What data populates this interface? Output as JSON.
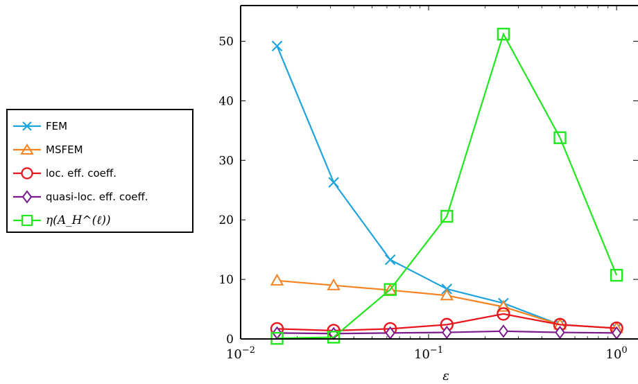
{
  "chart_data": {
    "type": "line",
    "title": "",
    "xlabel": "ε",
    "ylabel": "",
    "xscale": "log",
    "xlim": [
      0.01,
      1.3
    ],
    "ylim": [
      0,
      56
    ],
    "x": [
      0.015625,
      0.03125,
      0.0625,
      0.125,
      0.25,
      0.5,
      1.0
    ],
    "yticks": [
      0,
      10,
      20,
      30,
      40,
      50
    ],
    "xticks": [
      {
        "value": 0.01,
        "base": "10",
        "exp": "−2"
      },
      {
        "value": 0.1,
        "base": "10",
        "exp": "−1"
      },
      {
        "value": 1.0,
        "base": "10",
        "exp": "0"
      }
    ],
    "legend_position": "left",
    "grid": false,
    "series": [
      {
        "name": "FEM",
        "color": "#1fa3dc",
        "marker": "x",
        "values": [
          49.2,
          26.3,
          13.3,
          8.4,
          6.0,
          2.4,
          1.8
        ]
      },
      {
        "name": "MSFEM",
        "color": "#f58220",
        "marker": "triangle",
        "values": [
          9.8,
          9.0,
          8.2,
          7.3,
          5.4,
          2.4,
          1.8
        ]
      },
      {
        "name": "loc. eff. coeff.",
        "color": "#e8141e",
        "marker": "circle",
        "values": [
          1.7,
          1.4,
          1.7,
          2.4,
          4.2,
          2.4,
          1.8
        ]
      },
      {
        "name": "quasi-loc. eff. coeff.",
        "color": "#7b1a8c",
        "marker": "diamond",
        "values": [
          1.0,
          0.9,
          1.0,
          1.1,
          1.3,
          1.1,
          1.0
        ]
      },
      {
        "name": "η(A_H^(ℓ))",
        "color": "#22e61e",
        "marker": "square",
        "values": [
          0.1,
          0.3,
          8.3,
          20.6,
          51.2,
          33.8,
          10.7
        ]
      }
    ]
  }
}
